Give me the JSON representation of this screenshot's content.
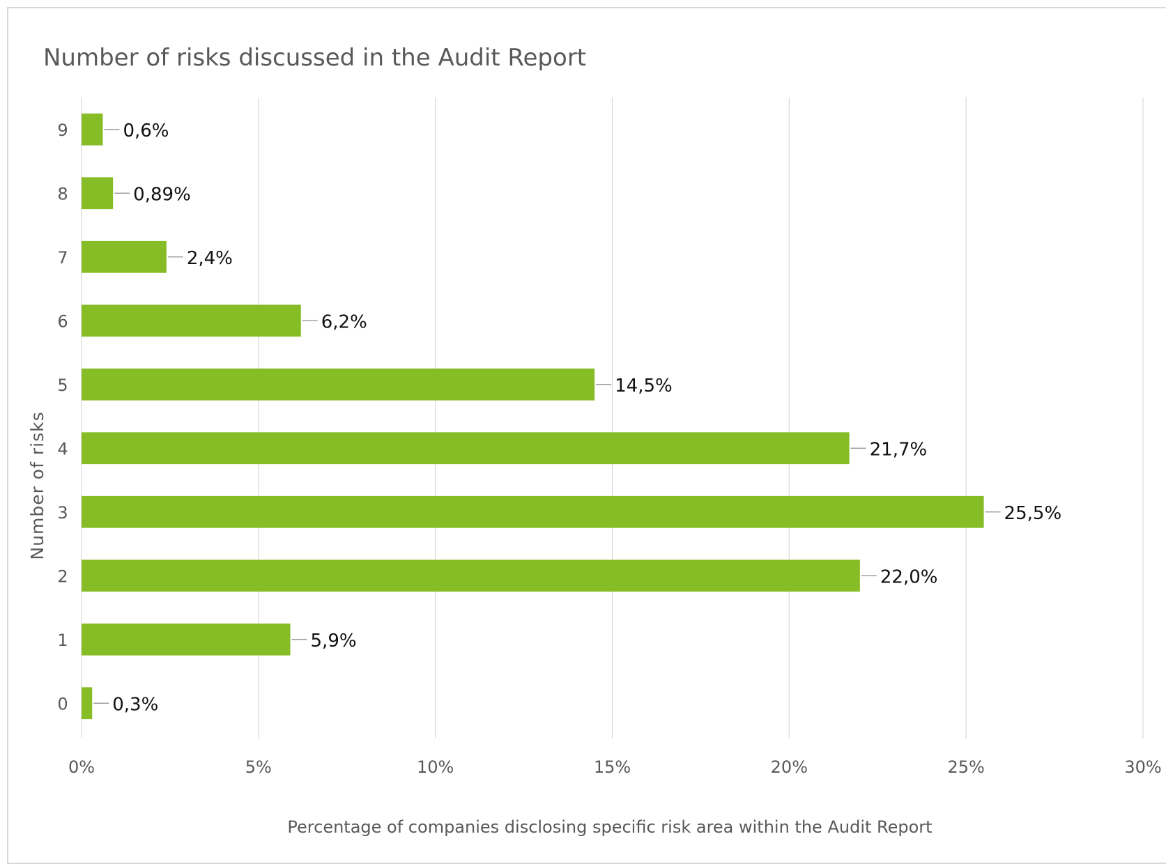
{
  "chart_data": {
    "type": "bar",
    "orientation": "horizontal",
    "title": "Number of risks discussed in the Audit Report",
    "xlabel": "Percentage of companies disclosing specific risk area within the Audit Report",
    "ylabel": "Number of risks",
    "categories": [
      "0",
      "1",
      "2",
      "3",
      "4",
      "5",
      "6",
      "7",
      "8",
      "9"
    ],
    "values": [
      0.3,
      5.9,
      22.0,
      25.5,
      21.7,
      14.5,
      6.2,
      2.4,
      0.89,
      0.6
    ],
    "data_labels": [
      "0,3%",
      "5,9%",
      "22,0%",
      "25,5%",
      "21,7%",
      "14,5%",
      "6,2%",
      "2,4%",
      "0,89%",
      "0,6%"
    ],
    "xlim": [
      0,
      30
    ],
    "xticks": [
      0,
      5,
      10,
      15,
      20,
      25,
      30
    ],
    "xtick_labels": [
      "0%",
      "5%",
      "10%",
      "15%",
      "20%",
      "25%",
      "30%"
    ],
    "grid": "vertical",
    "legend": "none",
    "bar_color": "#86BC25"
  }
}
